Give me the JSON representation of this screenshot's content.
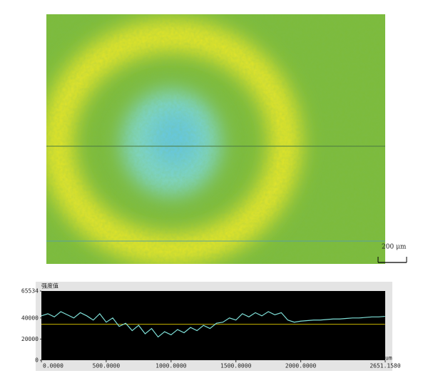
{
  "scale_bar": {
    "label": "200 μm"
  },
  "chart_data": {
    "type": "line",
    "ylabel": "强度值",
    "xlabel": "um",
    "x": [
      0,
      50,
      100,
      150,
      200,
      250,
      300,
      350,
      400,
      450,
      500,
      550,
      600,
      650,
      700,
      750,
      800,
      850,
      900,
      950,
      1000,
      1050,
      1100,
      1150,
      1200,
      1250,
      1300,
      1350,
      1400,
      1450,
      1500,
      1550,
      1600,
      1650,
      1700,
      1750,
      1800,
      1850,
      1900,
      1950,
      2000,
      2050,
      2100,
      2150,
      2200,
      2250,
      2300,
      2350,
      2400,
      2450,
      2500,
      2550,
      2600,
      2650
    ],
    "series": [
      {
        "color": "#7fe0d8",
        "values": [
          42000,
          44000,
          41000,
          46000,
          43000,
          40000,
          45000,
          42000,
          38000,
          44000,
          36000,
          40000,
          32000,
          35000,
          28000,
          33000,
          25000,
          30000,
          22000,
          27000,
          24000,
          29000,
          26000,
          31000,
          28000,
          33000,
          30000,
          35000,
          36000,
          40000,
          38000,
          44000,
          41000,
          45000,
          42000,
          46000,
          43000,
          45000,
          38000,
          36000,
          37000,
          37500,
          38000,
          38000,
          38500,
          39000,
          39000,
          39500,
          40000,
          40000,
          40500,
          41000,
          41000,
          41500
        ]
      },
      {
        "color": "#c8b400",
        "values": [
          34000,
          34000,
          34000,
          34000,
          34000,
          34000,
          34000,
          34000,
          34000,
          34000,
          34000,
          34000,
          34000,
          34000,
          34000,
          34000,
          34000,
          34000,
          34000,
          34000,
          34000,
          34000,
          34000,
          34000,
          34000,
          34000,
          34000,
          34000,
          34000,
          34000,
          34000,
          34000,
          34000,
          34000,
          34000,
          34000,
          34000,
          34000,
          34000,
          34000,
          34000,
          34000,
          34000,
          34000,
          34000,
          34000,
          34000,
          34000,
          34000,
          34000,
          34000,
          34000,
          34000,
          34000
        ]
      }
    ],
    "xlim": [
      0,
      2651.158
    ],
    "ylim": [
      0,
      65534
    ],
    "xticks": [
      {
        "value": 0,
        "label": "0.0000"
      },
      {
        "value": 500,
        "label": "500.0000"
      },
      {
        "value": 1000,
        "label": "1000.0000"
      },
      {
        "value": 1500,
        "label": "1500.0000"
      },
      {
        "value": 2000,
        "label": "2000.0000"
      },
      {
        "value": 2651.158,
        "label": "2651.1580"
      }
    ],
    "yticks": [
      0,
      20000,
      40000,
      65534
    ]
  }
}
